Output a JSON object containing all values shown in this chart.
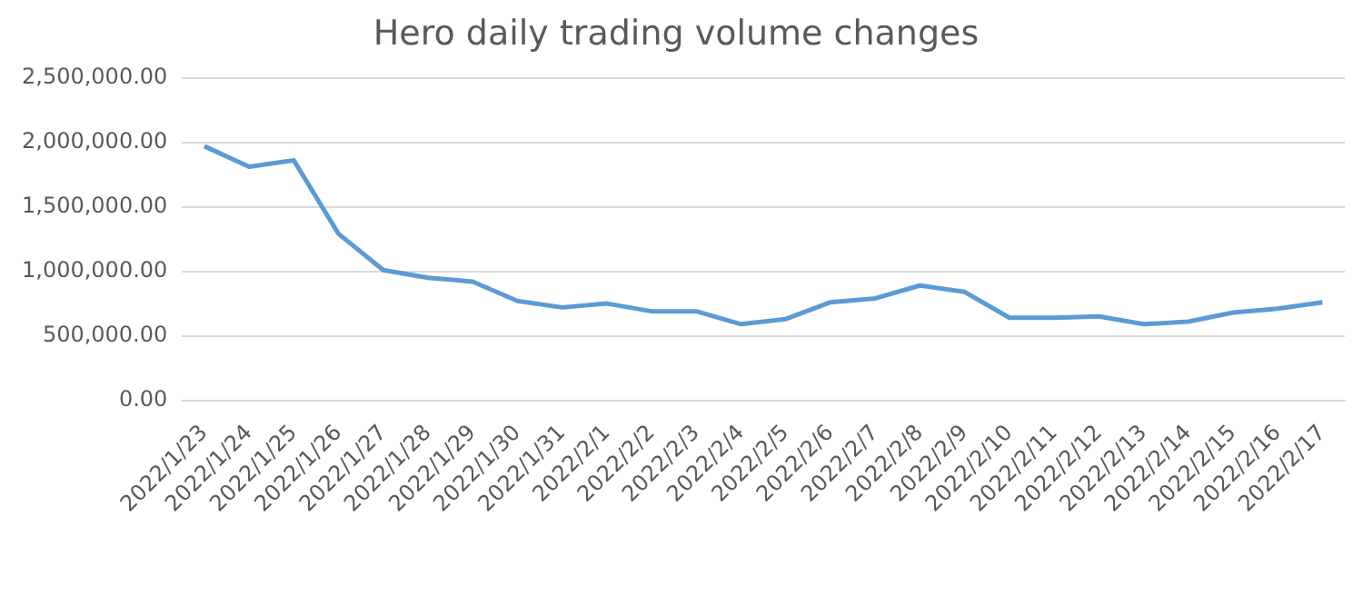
{
  "chart_data": {
    "type": "line",
    "title": "Hero daily trading volume changes",
    "categories": [
      "2022/1/23",
      "2022/1/24",
      "2022/1/25",
      "2022/1/26",
      "2022/1/27",
      "2022/1/28",
      "2022/1/29",
      "2022/1/30",
      "2022/1/31",
      "2022/2/1",
      "2022/2/2",
      "2022/2/3",
      "2022/2/4",
      "2022/2/5",
      "2022/2/6",
      "2022/2/7",
      "2022/2/8",
      "2022/2/9",
      "2022/2/10",
      "2022/2/11",
      "2022/2/12",
      "2022/2/13",
      "2022/2/14",
      "2022/2/15",
      "2022/2/16",
      "2022/2/17"
    ],
    "series": [
      {
        "color": "#5b9bd5",
        "values": [
          1970000,
          1810000,
          1860000,
          1290000,
          1010000,
          950000,
          920000,
          770000,
          720000,
          750000,
          690000,
          690000,
          590000,
          630000,
          760000,
          790000,
          890000,
          840000,
          640000,
          640000,
          650000,
          590000,
          610000,
          680000,
          710000,
          760000
        ]
      }
    ],
    "ylim": [
      0,
      2500000
    ],
    "yticks": [
      {
        "value": 0,
        "label": "0.00"
      },
      {
        "value": 500000,
        "label": "500,000.00"
      },
      {
        "value": 1000000,
        "label": "1,000,000.00"
      },
      {
        "value": 1500000,
        "label": "1,500,000.00"
      },
      {
        "value": 2000000,
        "label": "2,000,000.00"
      },
      {
        "value": 2500000,
        "label": "2,500,000.00"
      }
    ],
    "grid": "y",
    "marker": "none",
    "line_style": "solid",
    "legend": false
  }
}
